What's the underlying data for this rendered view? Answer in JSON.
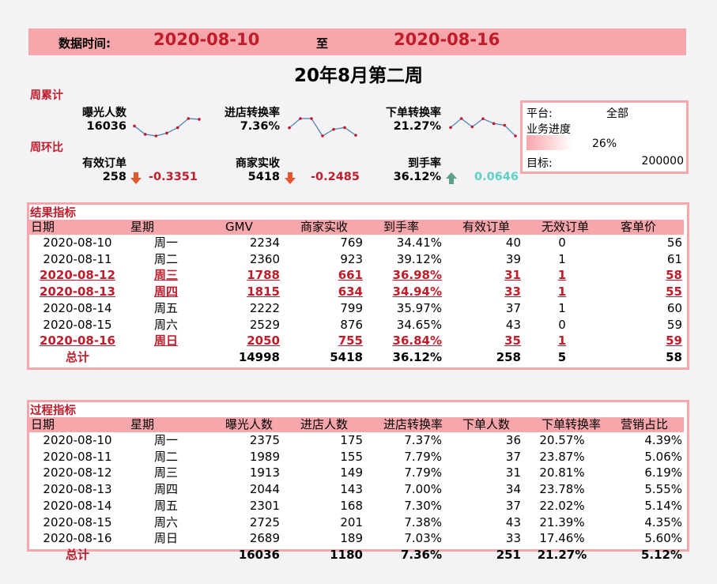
{
  "header": {
    "time_label": "数据时间:",
    "start_date": "2020-08-10",
    "to_label": "至",
    "end_date": "2020-08-16",
    "week_title": "20年8月第二周"
  },
  "cumulative": {
    "section_label": "周累计",
    "exposure": {
      "label": "曝光人数",
      "value": "16036",
      "spark": [
        2375,
        1989,
        1913,
        2044,
        2301,
        2725,
        2689
      ]
    },
    "store_conv": {
      "label": "进店转换率",
      "value": "7.36%",
      "spark": [
        7.37,
        7.79,
        7.79,
        7.0,
        7.3,
        7.38,
        7.03
      ]
    },
    "order_conv": {
      "label": "下单转换率",
      "value": "21.27%",
      "spark": [
        20.57,
        23.87,
        20.81,
        23.78,
        22.02,
        21.39,
        17.46
      ]
    }
  },
  "wow": {
    "section_label": "周环比",
    "valid_orders": {
      "label": "有效订单",
      "value": "258",
      "change": "-0.3351",
      "direction": "down",
      "arrow_icon": "arrow-down-icon",
      "color": "#c01c2a"
    },
    "merchant_income": {
      "label": "商家实收",
      "value": "5418",
      "change": "-0.2485",
      "direction": "down",
      "arrow_icon": "arrow-down-icon",
      "color": "#c01c2a"
    },
    "arrival_rate": {
      "label": "到手率",
      "value": "36.12%",
      "change": "0.0646",
      "direction": "up",
      "arrow_icon": "arrow-up-icon",
      "color": "#5fd0c5"
    }
  },
  "platform": {
    "label": "平台:",
    "value": "全部",
    "progress_label": "业务进度",
    "progress_pct": "26%",
    "progress_fraction": 0.26,
    "target_label": "目标:",
    "target_value": "200000"
  },
  "results": {
    "title": "结果指标",
    "headers": [
      "日期",
      "星期",
      "GMV",
      "商家实收",
      "到手率",
      "有效订单",
      "无效订单",
      "客单价"
    ],
    "rows": [
      [
        "2020-08-10",
        "周一",
        "2234",
        "769",
        "34.41%",
        "40",
        "0",
        "56"
      ],
      [
        "2020-08-11",
        "周二",
        "2360",
        "923",
        "39.12%",
        "39",
        "1",
        "61"
      ],
      [
        "2020-08-12",
        "周三",
        "1788",
        "661",
        "36.98%",
        "31",
        "1",
        "58"
      ],
      [
        "2020-08-13",
        "周四",
        "1815",
        "634",
        "34.94%",
        "33",
        "1",
        "55"
      ],
      [
        "2020-08-14",
        "周五",
        "2222",
        "799",
        "35.97%",
        "37",
        "1",
        "60"
      ],
      [
        "2020-08-15",
        "周六",
        "2529",
        "876",
        "34.65%",
        "43",
        "0",
        "59"
      ],
      [
        "2020-08-16",
        "周日",
        "2050",
        "755",
        "36.84%",
        "35",
        "1",
        "59"
      ]
    ],
    "highlighted_rows": [
      2,
      3,
      6
    ],
    "total": [
      "总计",
      "",
      "14998",
      "5418",
      "36.12%",
      "258",
      "5",
      "58"
    ]
  },
  "process": {
    "title": "过程指标",
    "headers": [
      "日期",
      "星期",
      "曝光人数",
      "进店人数",
      "进店转换率",
      "下单人数",
      "下单转换率",
      "营销占比"
    ],
    "rows": [
      [
        "2020-08-10",
        "周一",
        "2375",
        "175",
        "7.37%",
        "36",
        "20.57%",
        "4.39%"
      ],
      [
        "2020-08-11",
        "周二",
        "1989",
        "155",
        "7.79%",
        "37",
        "23.87%",
        "5.06%"
      ],
      [
        "2020-08-12",
        "周三",
        "1913",
        "149",
        "7.79%",
        "31",
        "20.81%",
        "6.19%"
      ],
      [
        "2020-08-13",
        "周四",
        "2044",
        "143",
        "7.00%",
        "34",
        "23.78%",
        "5.55%"
      ],
      [
        "2020-08-14",
        "周五",
        "2301",
        "168",
        "7.30%",
        "37",
        "22.02%",
        "5.14%"
      ],
      [
        "2020-08-15",
        "周六",
        "2725",
        "201",
        "7.38%",
        "43",
        "21.39%",
        "4.35%"
      ],
      [
        "2020-08-16",
        "周日",
        "2689",
        "189",
        "7.03%",
        "33",
        "17.46%",
        "5.60%"
      ]
    ],
    "total": [
      "总计",
      "",
      "16036",
      "1180",
      "7.36%",
      "251",
      "21.27%",
      "5.12%"
    ]
  }
}
